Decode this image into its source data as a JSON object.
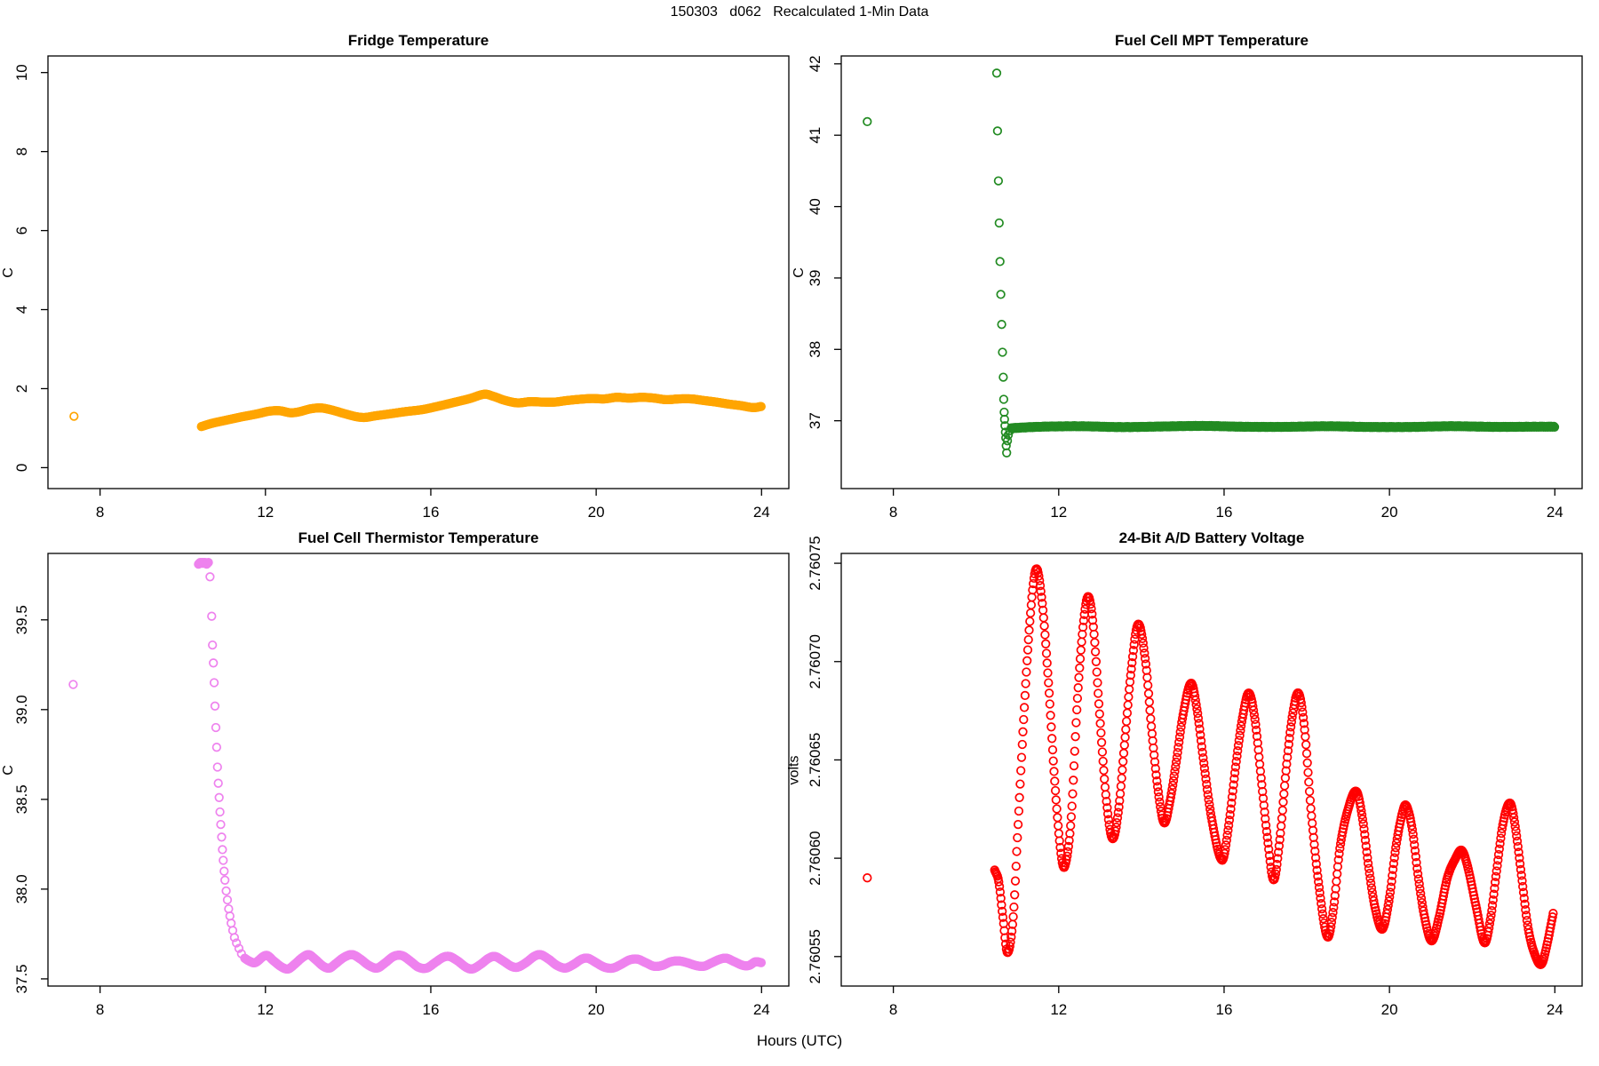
{
  "figure": {
    "title": "150303   d062   Recalculated 1-Min Data",
    "xlabel": "Hours (UTC)",
    "background": "#ffffff",
    "axis_color": "#000000"
  },
  "chart_data": [
    {
      "type": "scatter",
      "title": "Fridge Temperature",
      "ylabel": "C",
      "color": "#FFA500",
      "marker": {
        "radius": 4.3,
        "stroke_width": 1.7
      },
      "xlim": [
        6.74,
        24.66
      ],
      "ylim": [
        -0.53,
        10.42
      ],
      "xticks": {
        "values": [
          8,
          12,
          16,
          20,
          24
        ],
        "labels": [
          "8",
          "12",
          "16",
          "20",
          "24"
        ]
      },
      "yticks": {
        "values": [
          0,
          2,
          4,
          6,
          8,
          10
        ],
        "labels": [
          "0",
          "2",
          "4",
          "6",
          "8",
          "10"
        ]
      },
      "stray_points": [
        [
          7.37,
          1.3
        ]
      ],
      "scatter_points": [],
      "keypoints": [
        [
          10.45,
          1.04
        ],
        [
          10.7,
          1.12
        ],
        [
          11.0,
          1.19
        ],
        [
          11.4,
          1.28
        ],
        [
          11.8,
          1.36
        ],
        [
          12.1,
          1.43
        ],
        [
          12.35,
          1.44
        ],
        [
          12.6,
          1.39
        ],
        [
          12.8,
          1.41
        ],
        [
          13.1,
          1.49
        ],
        [
          13.35,
          1.51
        ],
        [
          13.6,
          1.46
        ],
        [
          13.9,
          1.37
        ],
        [
          14.2,
          1.29
        ],
        [
          14.4,
          1.27
        ],
        [
          14.65,
          1.31
        ],
        [
          15.0,
          1.36
        ],
        [
          15.4,
          1.42
        ],
        [
          15.8,
          1.47
        ],
        [
          16.2,
          1.56
        ],
        [
          16.6,
          1.66
        ],
        [
          16.95,
          1.75
        ],
        [
          17.3,
          1.86
        ],
        [
          17.5,
          1.81
        ],
        [
          17.8,
          1.7
        ],
        [
          18.1,
          1.64
        ],
        [
          18.4,
          1.67
        ],
        [
          18.7,
          1.66
        ],
        [
          19.0,
          1.66
        ],
        [
          19.3,
          1.7
        ],
        [
          19.6,
          1.73
        ],
        [
          19.9,
          1.75
        ],
        [
          20.2,
          1.74
        ],
        [
          20.5,
          1.78
        ],
        [
          20.8,
          1.76
        ],
        [
          21.1,
          1.78
        ],
        [
          21.4,
          1.76
        ],
        [
          21.7,
          1.72
        ],
        [
          22.0,
          1.74
        ],
        [
          22.3,
          1.74
        ],
        [
          22.6,
          1.7
        ],
        [
          22.9,
          1.66
        ],
        [
          23.2,
          1.61
        ],
        [
          23.5,
          1.57
        ],
        [
          23.8,
          1.52
        ],
        [
          24.0,
          1.55
        ]
      ],
      "sample_step_hours": 0.02,
      "jitter": 0.0
    },
    {
      "type": "scatter",
      "title": "Fuel Cell MPT Temperature",
      "ylabel": "C",
      "color": "#228B22",
      "marker": {
        "radius": 4.3,
        "stroke_width": 1.7
      },
      "xlim": [
        6.74,
        24.66
      ],
      "ylim": [
        36.05,
        42.11
      ],
      "xticks": {
        "values": [
          8,
          12,
          16,
          20,
          24
        ],
        "labels": [
          "8",
          "12",
          "16",
          "20",
          "24"
        ]
      },
      "yticks": {
        "values": [
          37,
          38,
          39,
          40,
          41,
          42
        ],
        "labels": [
          "37",
          "38",
          "39",
          "40",
          "41",
          "42"
        ]
      },
      "stray_points": [
        [
          7.37,
          41.19
        ]
      ],
      "scatter_points": [
        [
          10.5,
          41.87
        ],
        [
          10.52,
          41.06
        ],
        [
          10.54,
          40.36
        ],
        [
          10.56,
          39.77
        ],
        [
          10.58,
          39.23
        ],
        [
          10.6,
          38.77
        ],
        [
          10.62,
          38.35
        ],
        [
          10.64,
          37.96
        ],
        [
          10.66,
          37.61
        ],
        [
          10.67,
          37.3
        ],
        [
          10.68,
          37.12
        ],
        [
          10.69,
          37.02
        ],
        [
          10.7,
          36.93
        ],
        [
          10.71,
          36.84
        ],
        [
          10.72,
          36.76
        ],
        [
          10.73,
          36.65
        ],
        [
          10.74,
          36.55
        ],
        [
          10.76,
          36.72
        ],
        [
          10.78,
          36.8
        ],
        [
          10.82,
          36.86
        ],
        [
          10.88,
          36.9
        ]
      ],
      "keypoints": [
        [
          10.85,
          36.89
        ],
        [
          11.5,
          36.91
        ],
        [
          12.5,
          36.92
        ],
        [
          13.5,
          36.91
        ],
        [
          14.5,
          36.92
        ],
        [
          15.5,
          36.93
        ],
        [
          16.5,
          36.92
        ],
        [
          17.5,
          36.92
        ],
        [
          18.5,
          36.93
        ],
        [
          19.5,
          36.92
        ],
        [
          20.5,
          36.92
        ],
        [
          21.5,
          36.93
        ],
        [
          22.5,
          36.92
        ],
        [
          23.5,
          36.92
        ],
        [
          24.0,
          36.92
        ]
      ],
      "sample_step_hours": 0.0167,
      "jitter": 0.014
    },
    {
      "type": "scatter",
      "title": "Fuel Cell Thermistor Temperature",
      "ylabel": "C",
      "color": "#EE82EE",
      "marker": {
        "radius": 4.3,
        "stroke_width": 1.7
      },
      "xlim": [
        6.74,
        24.66
      ],
      "ylim": [
        37.46,
        39.87
      ],
      "xticks": {
        "values": [
          8,
          12,
          16,
          20,
          24
        ],
        "labels": [
          "8",
          "12",
          "16",
          "20",
          "24"
        ]
      },
      "yticks": {
        "values": [
          37.5,
          38.0,
          38.5,
          39.0,
          39.5
        ],
        "labels": [
          "37.5",
          "38.0",
          "38.5",
          "39.0",
          "39.5"
        ]
      },
      "stray_points": [
        [
          7.35,
          39.14
        ]
      ],
      "scatter_points": [
        [
          10.38,
          39.81
        ],
        [
          10.4,
          39.815
        ],
        [
          10.42,
          39.82
        ],
        [
          10.44,
          39.815
        ],
        [
          10.46,
          39.82
        ],
        [
          10.48,
          39.815
        ],
        [
          10.5,
          39.82
        ],
        [
          10.52,
          39.815
        ],
        [
          10.54,
          39.82
        ],
        [
          10.56,
          39.815
        ],
        [
          10.58,
          39.81
        ],
        [
          10.6,
          39.815
        ],
        [
          10.62,
          39.82
        ],
        [
          10.66,
          39.74
        ],
        [
          10.7,
          39.52
        ],
        [
          10.72,
          39.36
        ],
        [
          10.74,
          39.26
        ],
        [
          10.76,
          39.15
        ],
        [
          10.78,
          39.02
        ],
        [
          10.8,
          38.9
        ],
        [
          10.82,
          38.79
        ],
        [
          10.84,
          38.68
        ],
        [
          10.86,
          38.59
        ],
        [
          10.88,
          38.51
        ],
        [
          10.9,
          38.43
        ],
        [
          10.92,
          38.36
        ],
        [
          10.94,
          38.29
        ],
        [
          10.96,
          38.22
        ],
        [
          10.98,
          38.16
        ],
        [
          11.0,
          38.1
        ],
        [
          11.02,
          38.05
        ],
        [
          11.05,
          37.99
        ],
        [
          11.08,
          37.94
        ],
        [
          11.11,
          37.89
        ],
        [
          11.14,
          37.85
        ],
        [
          11.17,
          37.81
        ],
        [
          11.21,
          37.77
        ],
        [
          11.25,
          37.73
        ],
        [
          11.3,
          37.7
        ],
        [
          11.36,
          37.67
        ],
        [
          11.42,
          37.64
        ]
      ],
      "keypoints": [
        [
          11.5,
          37.615
        ],
        [
          11.6,
          37.6
        ],
        [
          11.75,
          37.59
        ],
        [
          11.95,
          37.625
        ],
        [
          12.05,
          37.63
        ],
        [
          12.2,
          37.6
        ],
        [
          12.4,
          37.565
        ],
        [
          12.55,
          37.555
        ],
        [
          12.7,
          37.58
        ],
        [
          12.9,
          37.62
        ],
        [
          13.05,
          37.635
        ],
        [
          13.2,
          37.61
        ],
        [
          13.4,
          37.57
        ],
        [
          13.55,
          37.56
        ],
        [
          13.7,
          37.585
        ],
        [
          13.9,
          37.62
        ],
        [
          14.1,
          37.635
        ],
        [
          14.3,
          37.61
        ],
        [
          14.5,
          37.575
        ],
        [
          14.7,
          37.56
        ],
        [
          14.9,
          37.59
        ],
        [
          15.1,
          37.625
        ],
        [
          15.3,
          37.63
        ],
        [
          15.5,
          37.6
        ],
        [
          15.7,
          37.565
        ],
        [
          15.9,
          37.56
        ],
        [
          16.1,
          37.59
        ],
        [
          16.3,
          37.62
        ],
        [
          16.45,
          37.625
        ],
        [
          16.65,
          37.6
        ],
        [
          16.85,
          37.565
        ],
        [
          17.0,
          37.555
        ],
        [
          17.2,
          37.58
        ],
        [
          17.4,
          37.615
        ],
        [
          17.55,
          37.625
        ],
        [
          17.75,
          37.6
        ],
        [
          17.95,
          37.57
        ],
        [
          18.1,
          37.565
        ],
        [
          18.3,
          37.59
        ],
        [
          18.5,
          37.625
        ],
        [
          18.65,
          37.635
        ],
        [
          18.85,
          37.61
        ],
        [
          19.05,
          37.575
        ],
        [
          19.25,
          37.56
        ],
        [
          19.45,
          37.58
        ],
        [
          19.65,
          37.61
        ],
        [
          19.8,
          37.615
        ],
        [
          20.0,
          37.59
        ],
        [
          20.2,
          37.565
        ],
        [
          20.4,
          37.56
        ],
        [
          20.6,
          37.58
        ],
        [
          20.8,
          37.605
        ],
        [
          21.0,
          37.61
        ],
        [
          21.2,
          37.59
        ],
        [
          21.4,
          37.57
        ],
        [
          21.6,
          37.575
        ],
        [
          21.8,
          37.595
        ],
        [
          22.0,
          37.6
        ],
        [
          22.2,
          37.59
        ],
        [
          22.4,
          37.575
        ],
        [
          22.6,
          37.57
        ],
        [
          22.8,
          37.59
        ],
        [
          23.0,
          37.61
        ],
        [
          23.15,
          37.615
        ],
        [
          23.35,
          37.595
        ],
        [
          23.55,
          37.575
        ],
        [
          23.7,
          37.575
        ],
        [
          23.85,
          37.595
        ],
        [
          24.0,
          37.59
        ]
      ],
      "sample_step_hours": 0.0167,
      "jitter": 0.0
    },
    {
      "type": "scatter",
      "title": "24-Bit A/D Battery Voltage",
      "ylabel": "volts",
      "color": "#FF0000",
      "marker": {
        "radius": 4.3,
        "stroke_width": 1.7
      },
      "xlim": [
        6.74,
        24.66
      ],
      "ylim": [
        2.760535,
        2.760755
      ],
      "xticks": {
        "values": [
          8,
          12,
          16,
          20,
          24
        ],
        "labels": [
          "8",
          "12",
          "16",
          "20",
          "24"
        ]
      },
      "yticks": {
        "values": [
          2.76055,
          2.7606,
          2.76065,
          2.7607,
          2.76075
        ],
        "labels": [
          "2.76055",
          "2.76060",
          "2.76065",
          "2.76070",
          "2.76075"
        ]
      },
      "stray_points": [
        [
          7.37,
          2.76059
        ]
      ],
      "scatter_points": [],
      "keypoints": [
        [
          10.45,
          2.760594
        ],
        [
          10.55,
          2.760588
        ],
        [
          10.65,
          2.76057
        ],
        [
          10.76,
          2.760552
        ],
        [
          10.9,
          2.76057
        ],
        [
          11.0,
          2.76061
        ],
        [
          11.15,
          2.76067
        ],
        [
          11.3,
          2.76072
        ],
        [
          11.45,
          2.760747
        ],
        [
          11.6,
          2.76073
        ],
        [
          11.75,
          2.76069
        ],
        [
          11.9,
          2.76064
        ],
        [
          12.05,
          2.760603
        ],
        [
          12.15,
          2.760596
        ],
        [
          12.3,
          2.76062
        ],
        [
          12.45,
          2.76068
        ],
        [
          12.6,
          2.76072
        ],
        [
          12.72,
          2.760733
        ],
        [
          12.85,
          2.760715
        ],
        [
          13.0,
          2.76067
        ],
        [
          13.15,
          2.76063
        ],
        [
          13.3,
          2.76061
        ],
        [
          13.45,
          2.760625
        ],
        [
          13.6,
          2.76066
        ],
        [
          13.75,
          2.760695
        ],
        [
          13.92,
          2.760719
        ],
        [
          14.1,
          2.7607
        ],
        [
          14.25,
          2.760665
        ],
        [
          14.4,
          2.760635
        ],
        [
          14.55,
          2.760618
        ],
        [
          14.7,
          2.76063
        ],
        [
          14.85,
          2.76065
        ],
        [
          15.0,
          2.760672
        ],
        [
          15.2,
          2.760689
        ],
        [
          15.35,
          2.760675
        ],
        [
          15.5,
          2.76065
        ],
        [
          15.7,
          2.76062
        ],
        [
          15.95,
          2.760599
        ],
        [
          16.1,
          2.760615
        ],
        [
          16.3,
          2.76065
        ],
        [
          16.45,
          2.760672
        ],
        [
          16.6,
          2.760684
        ],
        [
          16.75,
          2.76067
        ],
        [
          16.9,
          2.76064
        ],
        [
          17.05,
          2.76061
        ],
        [
          17.2,
          2.760589
        ],
        [
          17.35,
          2.76061
        ],
        [
          17.5,
          2.760645
        ],
        [
          17.65,
          2.760672
        ],
        [
          17.8,
          2.760684
        ],
        [
          17.95,
          2.760665
        ],
        [
          18.1,
          2.760625
        ],
        [
          18.3,
          2.760585
        ],
        [
          18.5,
          2.76056
        ],
        [
          18.65,
          2.760575
        ],
        [
          18.8,
          2.760605
        ],
        [
          19.0,
          2.760625
        ],
        [
          19.2,
          2.760634
        ],
        [
          19.35,
          2.76062
        ],
        [
          19.5,
          2.760595
        ],
        [
          19.65,
          2.760575
        ],
        [
          19.83,
          2.760564
        ],
        [
          20.0,
          2.76058
        ],
        [
          20.15,
          2.760605
        ],
        [
          20.3,
          2.760622
        ],
        [
          20.4,
          2.760627
        ],
        [
          20.55,
          2.760615
        ],
        [
          20.7,
          2.76059
        ],
        [
          20.85,
          2.76057
        ],
        [
          21.02,
          2.760558
        ],
        [
          21.2,
          2.76057
        ],
        [
          21.4,
          2.76059
        ],
        [
          21.6,
          2.7606
        ],
        [
          21.75,
          2.760604
        ],
        [
          21.9,
          2.760595
        ],
        [
          22.1,
          2.760575
        ],
        [
          22.3,
          2.760557
        ],
        [
          22.45,
          2.76057
        ],
        [
          22.6,
          2.760595
        ],
        [
          22.75,
          2.760618
        ],
        [
          22.92,
          2.760628
        ],
        [
          23.05,
          2.760615
        ],
        [
          23.2,
          2.76059
        ],
        [
          23.35,
          2.760565
        ],
        [
          23.5,
          2.760552
        ],
        [
          23.67,
          2.760546
        ],
        [
          23.8,
          2.760555
        ],
        [
          23.97,
          2.760573
        ]
      ],
      "sample_step_hours": 0.0167,
      "jitter": 0.0
    }
  ]
}
